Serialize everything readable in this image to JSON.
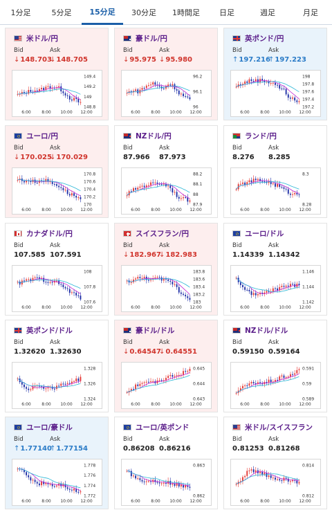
{
  "tabs": [
    {
      "label": "1分足",
      "active": false
    },
    {
      "label": "5分足",
      "active": false
    },
    {
      "label": "15分足",
      "active": true
    },
    {
      "label": "30分足",
      "active": false
    },
    {
      "label": "1時間足",
      "active": false
    },
    {
      "label": "日足",
      "active": false
    },
    {
      "label": "週足",
      "active": false
    },
    {
      "label": "月足",
      "active": false
    }
  ],
  "labels": {
    "bid": "Bid",
    "ask": "Ask"
  },
  "x_ticks": [
    "6:00",
    "8:00",
    "10:00",
    "12:00"
  ],
  "colors": {
    "down": "#d0342c",
    "up": "#2a7bc7",
    "candle_up": "#e53935",
    "candle_down": "#1f2fa6",
    "ma_short": "#c026d3",
    "ma_long": "#7b61ff",
    "ma_cyan": "#29b6d6"
  },
  "cards": [
    {
      "pair": "米ドル/円",
      "flag": "us",
      "bg": "red",
      "bid": "148.703",
      "ask": "148.705",
      "dir": "down",
      "y_ticks": [
        "149.4",
        "149.2",
        "149",
        "148.8"
      ],
      "trend": [
        0.35,
        0.4,
        0.45,
        0.5,
        0.48,
        0.55,
        0.6,
        0.58,
        0.55,
        0.4,
        0.25,
        0.2,
        0.1
      ]
    },
    {
      "pair": "豪ドル/円",
      "flag": "au",
      "bg": "red",
      "bid": "95.975",
      "ask": "95.980",
      "dir": "down",
      "y_ticks": [
        "96.2",
        "96.1",
        "96"
      ],
      "trend": [
        0.4,
        0.5,
        0.45,
        0.55,
        0.65,
        0.7,
        0.6,
        0.55,
        0.7,
        0.6,
        0.4,
        0.3,
        0.2
      ]
    },
    {
      "pair": "英ポンド/円",
      "flag": "gb",
      "bg": "blue",
      "bid": "197.216",
      "ask": "197.223",
      "dir": "up",
      "y_ticks": [
        "198",
        "197.8",
        "197.6",
        "197.4",
        "197.2"
      ],
      "trend": [
        0.6,
        0.7,
        0.75,
        0.8,
        0.78,
        0.8,
        0.75,
        0.72,
        0.6,
        0.5,
        0.3,
        0.2,
        0.15
      ]
    },
    {
      "pair": "ユーロ/円",
      "flag": "eu",
      "bg": "red",
      "bid": "170.025",
      "ask": "170.029",
      "dir": "down",
      "y_ticks": [
        "170.8",
        "170.6",
        "170.4",
        "170.2",
        "170"
      ],
      "trend": [
        0.75,
        0.7,
        0.72,
        0.68,
        0.7,
        0.72,
        0.68,
        0.6,
        0.55,
        0.4,
        0.3,
        0.25,
        0.15
      ]
    },
    {
      "pair": "NZドル/円",
      "flag": "nz",
      "bg": "white",
      "bid": "87.966",
      "ask": "87.973",
      "dir": "none",
      "y_ticks": [
        "88.2",
        "88.1",
        "88",
        "87.9"
      ],
      "trend": [
        0.3,
        0.4,
        0.5,
        0.55,
        0.6,
        0.62,
        0.65,
        0.6,
        0.55,
        0.35,
        0.2,
        0.15,
        0.12
      ]
    },
    {
      "pair": "ランド/円",
      "flag": "za",
      "bg": "white",
      "bid": "8.276",
      "ask": "8.285",
      "dir": "none",
      "y_ticks": [
        "8.3",
        "8.28"
      ],
      "trend": [
        0.5,
        0.6,
        0.65,
        0.7,
        0.72,
        0.7,
        0.68,
        0.6,
        0.55,
        0.45,
        0.35,
        0.3,
        0.3
      ]
    },
    {
      "pair": "カナダドル/円",
      "flag": "ca",
      "bg": "white",
      "bid": "107.585",
      "ask": "107.591",
      "dir": "none",
      "y_ticks": [
        "108",
        "107.8",
        "107.6"
      ],
      "trend": [
        0.55,
        0.6,
        0.65,
        0.68,
        0.7,
        0.65,
        0.62,
        0.6,
        0.55,
        0.4,
        0.3,
        0.2,
        0.1
      ]
    },
    {
      "pair": "スイスフラン/円",
      "flag": "ch",
      "bg": "red",
      "bid": "182.967",
      "ask": "182.983",
      "dir": "down",
      "y_ticks": [
        "183.8",
        "183.6",
        "183.4",
        "183.2",
        "183"
      ],
      "trend": [
        0.6,
        0.65,
        0.7,
        0.72,
        0.7,
        0.68,
        0.7,
        0.65,
        0.6,
        0.55,
        0.3,
        0.2,
        0.1
      ]
    },
    {
      "pair": "ユーロ/ドル",
      "flag": "eu",
      "bg": "white",
      "bid": "1.14339",
      "ask": "1.14342",
      "dir": "none",
      "y_ticks": [
        "1.146",
        "1.144",
        "1.142"
      ],
      "trend": [
        0.7,
        0.5,
        0.3,
        0.25,
        0.2,
        0.25,
        0.3,
        0.35,
        0.4,
        0.45,
        0.5,
        0.48,
        0.55
      ]
    },
    {
      "pair": "英ポンド/ドル",
      "flag": "gb",
      "bg": "white",
      "bid": "1.32620",
      "ask": "1.32630",
      "dir": "none",
      "y_ticks": [
        "1.328",
        "1.326",
        "1.324"
      ],
      "trend": [
        0.6,
        0.4,
        0.3,
        0.35,
        0.4,
        0.35,
        0.3,
        0.35,
        0.4,
        0.45,
        0.5,
        0.55,
        0.6
      ]
    },
    {
      "pair": "豪ドル/ドル",
      "flag": "au",
      "bg": "red",
      "bid": "0.64547",
      "ask": "0.64551",
      "dir": "down",
      "y_ticks": [
        "0.645",
        "0.644",
        "0.643"
      ],
      "trend": [
        0.2,
        0.3,
        0.4,
        0.5,
        0.45,
        0.5,
        0.55,
        0.6,
        0.65,
        0.7,
        0.75,
        0.8,
        0.85
      ]
    },
    {
      "pair": "NZドル/ドル",
      "flag": "nz",
      "bg": "white",
      "bid": "0.59150",
      "ask": "0.59164",
      "dir": "none",
      "y_ticks": [
        "0.591",
        "0.59",
        "0.589"
      ],
      "trend": [
        0.2,
        0.3,
        0.4,
        0.45,
        0.5,
        0.45,
        0.5,
        0.55,
        0.6,
        0.65,
        0.7,
        0.75,
        0.85
      ]
    },
    {
      "pair": "ユーロ/豪ドル",
      "flag": "eu",
      "bg": "blue",
      "bid": "1.77140",
      "ask": "1.77154",
      "dir": "up",
      "y_ticks": [
        "1.778",
        "1.776",
        "1.774",
        "1.772"
      ],
      "trend": [
        0.85,
        0.7,
        0.55,
        0.45,
        0.35,
        0.4,
        0.35,
        0.3,
        0.35,
        0.3,
        0.2,
        0.15,
        0.1
      ]
    },
    {
      "pair": "ユーロ/英ポンド",
      "flag": "eu",
      "bg": "white",
      "bid": "0.86208",
      "ask": "0.86216",
      "dir": "none",
      "y_ticks": [
        "0.863",
        "0.862"
      ],
      "trend": [
        0.8,
        0.6,
        0.5,
        0.45,
        0.4,
        0.45,
        0.42,
        0.4,
        0.38,
        0.35,
        0.3,
        0.25,
        0.22
      ]
    },
    {
      "pair": "米ドル/スイスフラン",
      "flag": "us",
      "bg": "white",
      "bid": "0.81253",
      "ask": "0.81268",
      "dir": "none",
      "y_ticks": [
        "0.814",
        "0.812"
      ],
      "trend": [
        0.3,
        0.5,
        0.7,
        0.75,
        0.7,
        0.65,
        0.6,
        0.55,
        0.5,
        0.48,
        0.45,
        0.42,
        0.4
      ]
    }
  ]
}
